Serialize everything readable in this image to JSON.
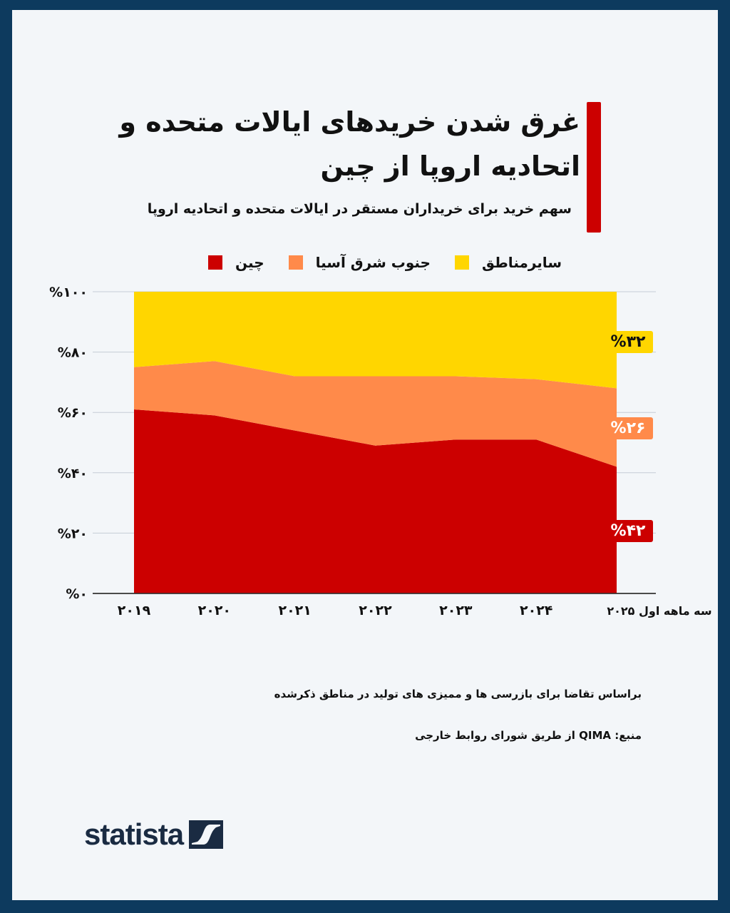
{
  "title": "غرق شدن خریدهای ایالات متحده و اتحادیه اروپا از چین",
  "subtitle": "سهم خرید برای خریداران مستقر در ایالات متحده و اتحادیه اروپا",
  "legend": [
    {
      "label": "سایرمناطق",
      "color": "#ffd600"
    },
    {
      "label": "جنوب شرق آسیا",
      "color": "#ff8a4a"
    },
    {
      "label": "چین",
      "color": "#cc0000"
    }
  ],
  "chart_data": {
    "type": "area",
    "stacked": true,
    "categories": [
      "۲۰۱۹",
      "۲۰۲۰",
      "۲۰۲۱",
      "۲۰۲۲",
      "۲۰۲۳",
      "۲۰۲۴",
      "سه ماهه اول ۲۰۲۵"
    ],
    "series": [
      {
        "name": "چین",
        "color": "#cc0000",
        "values": [
          61,
          59,
          54,
          49,
          51,
          51,
          42
        ]
      },
      {
        "name": "جنوب شرق آسیا",
        "color": "#ff8a4a",
        "values": [
          14,
          18,
          18,
          23,
          21,
          20,
          26
        ]
      },
      {
        "name": "سایرمناطق",
        "color": "#ffd600",
        "values": [
          25,
          23,
          28,
          28,
          28,
          29,
          32
        ]
      }
    ],
    "ylim": [
      0,
      100
    ],
    "yticks": [
      0,
      20,
      40,
      60,
      80,
      100
    ],
    "ytick_labels": [
      "%۰",
      "%۲۰",
      "%۴۰",
      "%۶۰",
      "%۸۰",
      "%۱۰۰"
    ],
    "grid": true,
    "legend_position": "top",
    "end_labels": {
      "others": "%۳۲",
      "sea": "%۲۶",
      "china": "%۴۲"
    }
  },
  "footnote": "براساس تقاضا برای بازرسی ها و ممیزی های تولید در مناطق ذکرشده",
  "source": "منبع: QIMA از طریق شورای روابط خارجی",
  "brand": "statista"
}
